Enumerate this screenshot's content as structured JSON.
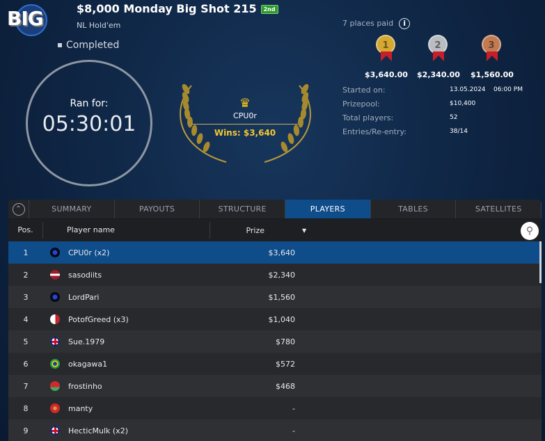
{
  "header": {
    "logo_text": "BIG",
    "title": "$8,000 Monday Big Shot 215",
    "badge": "2nd",
    "game": "NL Hold'em",
    "status": "Completed"
  },
  "timer": {
    "label": "Ran for:",
    "value": "05:30:01"
  },
  "winner": {
    "name": "CPU0r",
    "wins": "Wins: $3,640",
    "icon": "crown-icon"
  },
  "payouts": {
    "places_paid": "7 places paid",
    "info_icon": "i",
    "medals": [
      {
        "place": "1",
        "amount": "$3,640.00",
        "color": "#d4a832"
      },
      {
        "place": "2",
        "amount": "$2,340.00",
        "color": "#b9bcc0"
      },
      {
        "place": "3",
        "amount": "$1,560.00",
        "color": "#c27a52"
      }
    ]
  },
  "details": [
    {
      "label": "Started on:",
      "value": "13.05.2024    06:00 PM"
    },
    {
      "label": "Prizepool:",
      "value": "$10,400"
    },
    {
      "label": "Total players:",
      "value": "52"
    },
    {
      "label": "Entries/Re-entry:",
      "value": "38/14"
    }
  ],
  "tabs": [
    {
      "label": "SUMMARY"
    },
    {
      "label": "PAYOUTS"
    },
    {
      "label": "STRUCTURE"
    },
    {
      "label": "PLAYERS",
      "active": true
    },
    {
      "label": "TABLES"
    },
    {
      "label": "SATELLITES"
    }
  ],
  "table": {
    "columns": {
      "pos": "Pos.",
      "name": "Player name",
      "prize": "Prize"
    },
    "rows": [
      {
        "pos": "1",
        "flag": "site",
        "name": "CPU0r (x2)",
        "prize": "$3,640",
        "selected": true
      },
      {
        "pos": "2",
        "flag": "lv",
        "name": "sasodiits",
        "prize": "$2,340"
      },
      {
        "pos": "3",
        "flag": "site",
        "name": "LordPari",
        "prize": "$1,560"
      },
      {
        "pos": "4",
        "flag": "mt",
        "name": "PotofGreed (x3)",
        "prize": "$1,040"
      },
      {
        "pos": "5",
        "flag": "gb",
        "name": "Sue.1979",
        "prize": "$780"
      },
      {
        "pos": "6",
        "flag": "br",
        "name": "okagawa1",
        "prize": "$572"
      },
      {
        "pos": "7",
        "flag": "by",
        "name": "frostinho",
        "prize": "$468"
      },
      {
        "pos": "8",
        "flag": "me",
        "name": "manty",
        "prize": "-"
      },
      {
        "pos": "9",
        "flag": "gb",
        "name": "HecticMulk (x2)",
        "prize": "-"
      }
    ]
  },
  "colors": {
    "accent": "#0f4c8a",
    "gold": "#f2c830"
  }
}
